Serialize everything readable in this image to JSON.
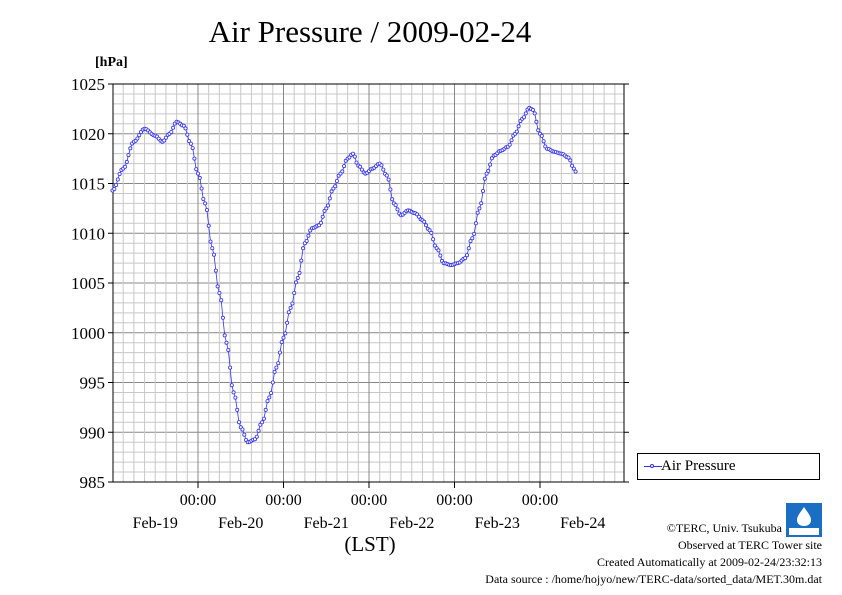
{
  "title": "Air Pressure / 2009-02-24",
  "unit_label": "[hPa]",
  "xlabel": "(LST)",
  "legend": {
    "label": "Air Pressure"
  },
  "footer": {
    "copyright": "©TERC, Univ. Tsukuba",
    "observed": "Observed at TERC Tower site",
    "created": "Created Automatically at 2009-02-24/23:32:13",
    "source": "Data source : /home/hojyo/new/TERC-data/sorted_data/MET.30m.dat"
  },
  "logo_text": "TERC",
  "chart_data": {
    "type": "line",
    "title": "Air Pressure / 2009-02-24",
    "ylabel": "[hPa]",
    "xlabel": "(LST)",
    "ylim": [
      985,
      1025
    ],
    "yticks": [
      985,
      990,
      995,
      1000,
      1005,
      1010,
      1015,
      1020,
      1025
    ],
    "xlim_hours": [
      0,
      144
    ],
    "xtick_labels": [
      "00:00",
      "00:00",
      "00:00",
      "00:00",
      "00:00"
    ],
    "day_labels": [
      "Feb-19",
      "Feb-20",
      "Feb-21",
      "Feb-22",
      "Feb-23",
      "Feb-24"
    ],
    "legend_position": "right",
    "grid": true,
    "series": [
      {
        "name": "Air Pressure",
        "color": "#3333ee",
        "points": [
          [
            0,
            1014.3
          ],
          [
            3,
            1016.5
          ],
          [
            6,
            1019.2
          ],
          [
            9,
            1020.5
          ],
          [
            12,
            1019.8
          ],
          [
            14,
            1019.2
          ],
          [
            16,
            1020.0
          ],
          [
            18,
            1021.2
          ],
          [
            20,
            1020.8
          ],
          [
            22,
            1019.0
          ],
          [
            24,
            1016.0
          ],
          [
            26,
            1013.0
          ],
          [
            28,
            1008.5
          ],
          [
            30,
            1004.0
          ],
          [
            32,
            999.0
          ],
          [
            34,
            994.0
          ],
          [
            36,
            990.5
          ],
          [
            38,
            989.0
          ],
          [
            40,
            989.3
          ],
          [
            42,
            991.0
          ],
          [
            44,
            993.5
          ],
          [
            46,
            996.5
          ],
          [
            48,
            999.5
          ],
          [
            50,
            1002.5
          ],
          [
            52,
            1005.5
          ],
          [
            54,
            1009.0
          ],
          [
            56,
            1010.5
          ],
          [
            58,
            1010.8
          ],
          [
            60,
            1012.5
          ],
          [
            62,
            1014.5
          ],
          [
            64,
            1016.0
          ],
          [
            66,
            1017.5
          ],
          [
            67.5,
            1018.0
          ],
          [
            69,
            1016.8
          ],
          [
            71,
            1016.0
          ],
          [
            73,
            1016.5
          ],
          [
            75,
            1017.0
          ],
          [
            77,
            1015.8
          ],
          [
            79,
            1013.0
          ],
          [
            81,
            1011.8
          ],
          [
            83,
            1012.3
          ],
          [
            85,
            1012.0
          ],
          [
            87,
            1011.3
          ],
          [
            89,
            1010.3
          ],
          [
            91,
            1008.5
          ],
          [
            93,
            1007.0
          ],
          [
            95,
            1006.8
          ],
          [
            97,
            1007.0
          ],
          [
            99,
            1007.5
          ],
          [
            101,
            1009.5
          ],
          [
            103,
            1012.5
          ],
          [
            105,
            1016.0
          ],
          [
            107,
            1017.8
          ],
          [
            109,
            1018.3
          ],
          [
            111,
            1018.7
          ],
          [
            113,
            1020.0
          ],
          [
            115,
            1021.5
          ],
          [
            117,
            1022.6
          ],
          [
            118,
            1022.4
          ],
          [
            120,
            1020.0
          ],
          [
            122,
            1018.5
          ],
          [
            124,
            1018.2
          ],
          [
            126,
            1018.0
          ],
          [
            128,
            1017.6
          ],
          [
            129.5,
            1016.5
          ],
          [
            130,
            1016.2
          ]
        ]
      }
    ]
  }
}
